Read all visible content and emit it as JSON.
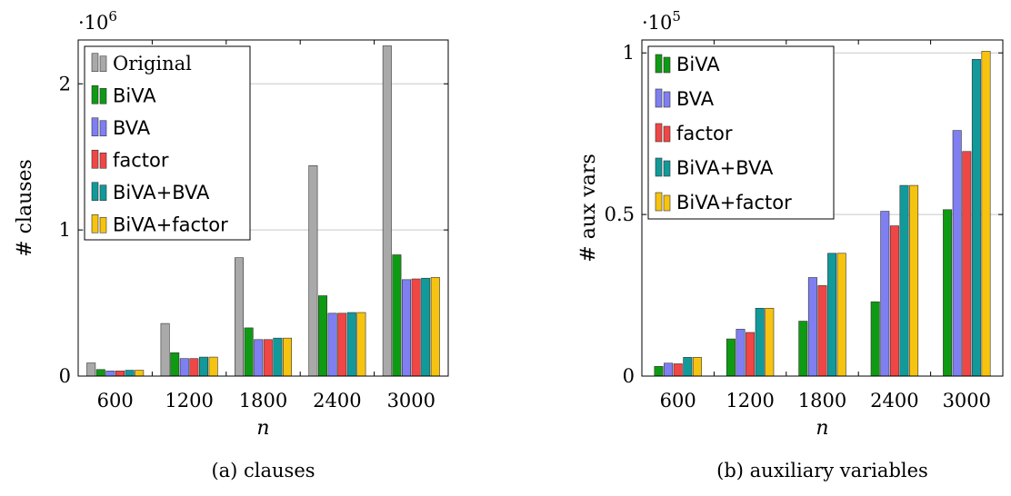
{
  "chart_data": [
    {
      "type": "bar",
      "caption": "(a) clauses",
      "xlabel": "n",
      "ylabel": "# clauses",
      "multiplier": "·10",
      "multiplier_exp": "6",
      "categories": [
        "600",
        "1200",
        "1800",
        "2400",
        "3000"
      ],
      "ylim": [
        0,
        2.3
      ],
      "yticks": [
        0,
        1,
        2
      ],
      "ytick_labels": [
        "0",
        "1",
        "2"
      ],
      "grid": true,
      "legend_position": "top-left",
      "series": [
        {
          "name": "Original",
          "color": "#a9a9a9",
          "values": [
            0.09,
            0.36,
            0.81,
            1.44,
            2.26
          ]
        },
        {
          "name": "BiVA",
          "color": "#0f9a13",
          "values": [
            0.045,
            0.16,
            0.33,
            0.55,
            0.83
          ]
        },
        {
          "name": "BVA",
          "color": "#7f7ff2",
          "values": [
            0.035,
            0.12,
            0.25,
            0.43,
            0.66
          ]
        },
        {
          "name": "factor",
          "color": "#f04646",
          "values": [
            0.035,
            0.12,
            0.25,
            0.43,
            0.665
          ]
        },
        {
          "name": "BiVA+BVA",
          "color": "#119a99",
          "values": [
            0.04,
            0.13,
            0.26,
            0.435,
            0.67
          ]
        },
        {
          "name": "BiVA+factor",
          "color": "#f6c310",
          "values": [
            0.04,
            0.13,
            0.26,
            0.435,
            0.675
          ]
        }
      ]
    },
    {
      "type": "bar",
      "caption": "(b) auxiliary variables",
      "xlabel": "n",
      "ylabel": "# aux vars",
      "multiplier": "·10",
      "multiplier_exp": "5",
      "categories": [
        "600",
        "1200",
        "1800",
        "2400",
        "3000"
      ],
      "ylim": [
        0,
        1.04
      ],
      "yticks": [
        0,
        0.5,
        1
      ],
      "ytick_labels": [
        "0",
        "0.5",
        "1"
      ],
      "grid": true,
      "legend_position": "top-left",
      "series": [
        {
          "name": "BiVA",
          "color": "#0f9a13",
          "values": [
            0.03,
            0.115,
            0.17,
            0.23,
            0.515
          ]
        },
        {
          "name": "BVA",
          "color": "#7f7ff2",
          "values": [
            0.04,
            0.145,
            0.305,
            0.51,
            0.76
          ]
        },
        {
          "name": "factor",
          "color": "#f04646",
          "values": [
            0.038,
            0.135,
            0.28,
            0.465,
            0.695
          ]
        },
        {
          "name": "BiVA+BVA",
          "color": "#119a99",
          "values": [
            0.058,
            0.21,
            0.38,
            0.59,
            0.98
          ]
        },
        {
          "name": "BiVA+factor",
          "color": "#f6c310",
          "values": [
            0.058,
            0.21,
            0.38,
            0.59,
            1.005
          ]
        }
      ]
    }
  ]
}
